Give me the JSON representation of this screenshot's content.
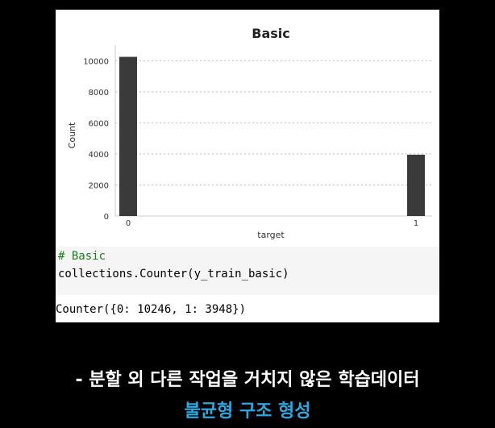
{
  "chart_data": {
    "type": "bar",
    "title": "Basic",
    "xlabel": "target",
    "ylabel": "Count",
    "categories": [
      "0",
      "1"
    ],
    "values": [
      10246,
      3948
    ],
    "ylim": [
      0,
      11000
    ],
    "yticks": [
      0,
      2000,
      4000,
      6000,
      8000,
      10000
    ],
    "grid": true,
    "bar_color": "#3a3a3a"
  },
  "code": {
    "comment": "# Basic",
    "line": "collections.Counter(y_train_basic)"
  },
  "output": "Counter({0: 10246, 1: 3948})",
  "caption": {
    "line1": "- 분할 외 다른 작업을 거치지 않은 학습데이터",
    "line2": "불균형 구조 형성"
  },
  "colors": {
    "caption_highlight": "#2aa8e0",
    "comment": "#1a7f1a"
  }
}
